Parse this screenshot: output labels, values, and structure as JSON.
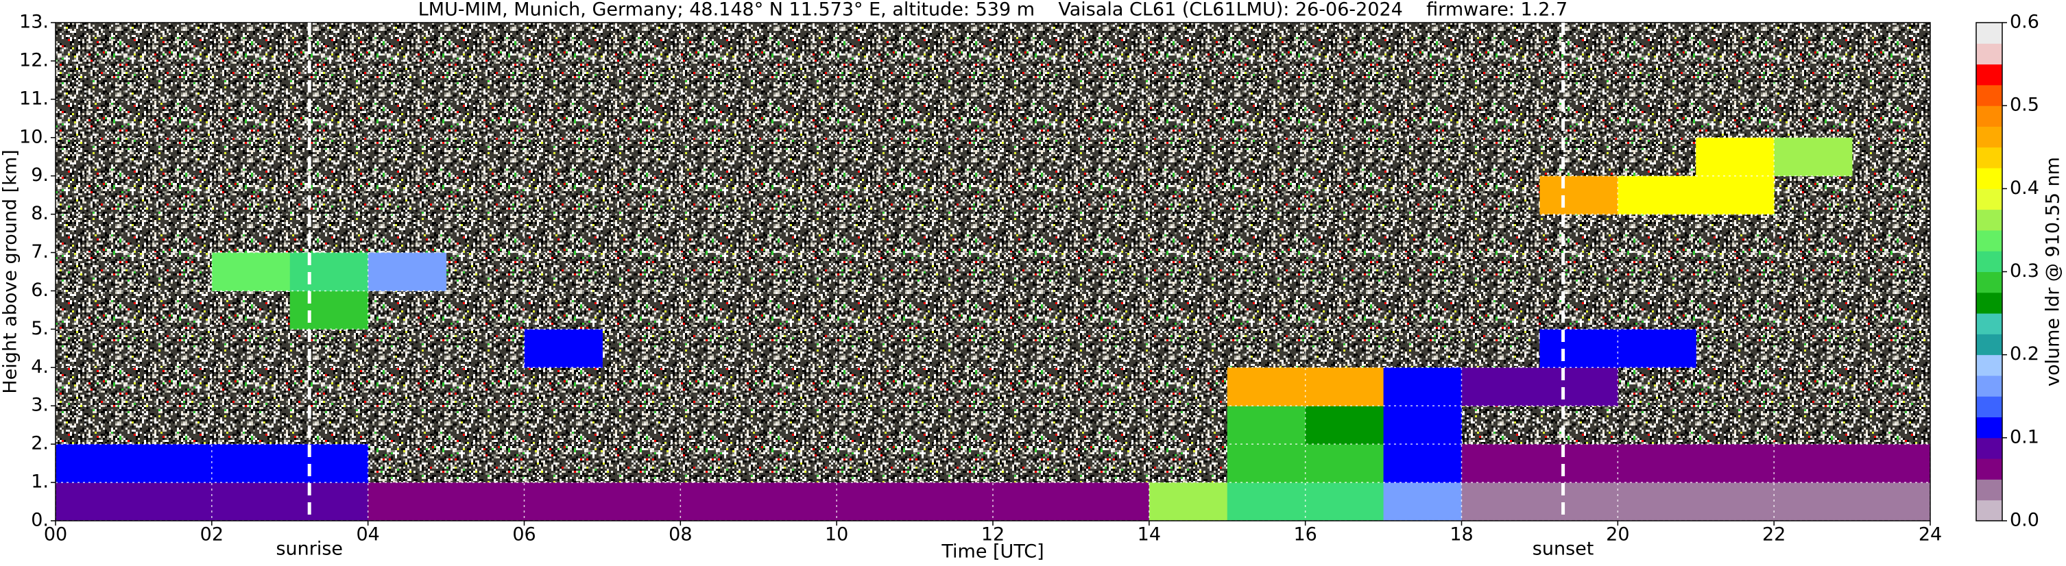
{
  "chart_data": {
    "type": "heatmap",
    "title": "LMU-MIM, Munich, Germany; 48.148° N 11.573° E, altitude: 539 m    Vaisala CL61 (CL61LMU): 26-06-2024    firmware: 1.2.7",
    "xlabel": "Time [UTC]",
    "ylabel": "Height above ground [km]",
    "colorbar_label": "volume ldr @ 910.55 nm",
    "xlim": [
      0,
      24
    ],
    "ylim": [
      0,
      13
    ],
    "xticks": [
      {
        "value": 0,
        "label": "00"
      },
      {
        "value": 2,
        "label": "02"
      },
      {
        "value": 4,
        "label": "04"
      },
      {
        "value": 6,
        "label": "06"
      },
      {
        "value": 8,
        "label": "08"
      },
      10,
      12,
      14,
      16,
      18,
      20,
      22,
      24
    ],
    "yticks": [
      {
        "value": 0,
        "label": "0."
      },
      {
        "value": 1,
        "label": "1."
      },
      {
        "value": 2,
        "label": "2."
      },
      {
        "value": 3,
        "label": "3."
      },
      {
        "value": 4,
        "label": "4."
      },
      {
        "value": 5,
        "label": "5."
      },
      {
        "value": 6,
        "label": "6."
      },
      {
        "value": 7,
        "label": "7."
      },
      {
        "value": 8,
        "label": "8."
      },
      {
        "value": 9,
        "label": "9."
      },
      {
        "value": 10,
        "label": "10."
      },
      {
        "value": 11,
        "label": "11."
      },
      {
        "value": 12,
        "label": "12."
      },
      {
        "value": 13,
        "label": "13."
      }
    ],
    "grid": true,
    "xbins": [
      0,
      1,
      2,
      3,
      4,
      5,
      6,
      7,
      8,
      9,
      10,
      11,
      12,
      13,
      14,
      15,
      16,
      17,
      18,
      19,
      20,
      21,
      22,
      23,
      24
    ],
    "ybins": [
      0,
      1,
      2,
      3,
      4,
      5,
      6,
      7,
      8,
      9,
      10,
      11,
      12,
      13
    ],
    "z": [
      [
        0.08,
        0.08,
        0.08,
        0.08,
        0.05,
        0.05,
        0.05,
        0.05,
        0.06,
        0.06,
        0.06,
        0.06,
        0.06,
        0.06,
        0.35,
        0.3,
        0.3,
        0.15,
        0.03,
        0.03,
        0.03,
        0.03,
        0.03,
        0.03
      ],
      [
        0.1,
        0.1,
        0.1,
        0.1,
        null,
        null,
        null,
        null,
        null,
        null,
        null,
        null,
        null,
        null,
        null,
        0.28,
        0.28,
        0.12,
        0.05,
        0.05,
        0.05,
        0.05,
        0.05,
        0.05
      ],
      [
        null,
        null,
        null,
        null,
        null,
        null,
        null,
        null,
        null,
        null,
        null,
        null,
        null,
        null,
        null,
        0.28,
        0.25,
        0.1,
        null,
        null,
        null,
        null,
        null,
        null
      ],
      [
        null,
        null,
        null,
        null,
        null,
        null,
        null,
        null,
        null,
        null,
        null,
        null,
        null,
        null,
        null,
        0.45,
        0.45,
        0.12,
        0.08,
        0.08,
        null,
        null,
        null,
        null
      ],
      [
        null,
        null,
        null,
        null,
        null,
        null,
        0.12,
        null,
        null,
        null,
        null,
        null,
        null,
        null,
        null,
        null,
        null,
        null,
        null,
        0.12,
        0.12,
        null,
        null,
        null
      ],
      [
        null,
        null,
        null,
        0.28,
        null,
        null,
        null,
        null,
        null,
        null,
        null,
        null,
        null,
        null,
        null,
        null,
        null,
        null,
        null,
        null,
        null,
        null,
        null,
        null
      ],
      [
        null,
        null,
        0.33,
        0.3,
        0.15,
        null,
        null,
        null,
        null,
        null,
        null,
        null,
        null,
        null,
        null,
        null,
        null,
        null,
        null,
        null,
        null,
        null,
        null,
        null
      ],
      [
        null,
        null,
        null,
        null,
        null,
        null,
        null,
        null,
        null,
        null,
        null,
        null,
        null,
        null,
        null,
        null,
        null,
        null,
        null,
        null,
        null,
        null,
        null,
        null
      ],
      [
        null,
        null,
        null,
        null,
        null,
        null,
        null,
        null,
        null,
        null,
        null,
        null,
        null,
        null,
        null,
        null,
        null,
        null,
        null,
        0.45,
        0.42,
        0.4,
        null,
        null
      ],
      [
        null,
        null,
        null,
        null,
        null,
        null,
        null,
        null,
        null,
        null,
        null,
        null,
        null,
        null,
        null,
        null,
        null,
        null,
        null,
        null,
        null,
        0.4,
        0.35,
        null
      ],
      [
        null,
        null,
        null,
        null,
        null,
        null,
        null,
        null,
        null,
        null,
        null,
        null,
        null,
        null,
        null,
        null,
        null,
        null,
        null,
        null,
        null,
        null,
        null,
        null
      ],
      [
        null,
        null,
        null,
        null,
        null,
        null,
        null,
        null,
        null,
        null,
        null,
        null,
        null,
        null,
        null,
        null,
        null,
        null,
        null,
        null,
        null,
        null,
        null,
        null
      ],
      [
        null,
        null,
        null,
        null,
        null,
        null,
        null,
        null,
        null,
        null,
        null,
        null,
        null,
        null,
        null,
        null,
        null,
        null,
        null,
        null,
        null,
        null,
        null,
        null
      ]
    ],
    "clim": [
      0,
      0.6
    ],
    "cticks": [
      {
        "value": 0,
        "label": "0.0"
      },
      0.1,
      0.2,
      0.3,
      0.4,
      0.5,
      0.6
    ],
    "colormap": [
      "#c8b8c8",
      "#a07aa0",
      "#800080",
      "#5a00a0",
      "#0000ff",
      "#3c64ff",
      "#78a0ff",
      "#a0c8ff",
      "#20a0a0",
      "#40c8b4",
      "#009600",
      "#32c832",
      "#3cdc78",
      "#64f064",
      "#a0f050",
      "#e6ff32",
      "#ffff00",
      "#ffd200",
      "#ffaa00",
      "#ff8c00",
      "#ff5a00",
      "#ff0000",
      "#f0c8c8",
      "#ebebeb"
    ],
    "annotations": [
      {
        "text": "sunrise",
        "x": 3.25
      },
      {
        "text": "sunset",
        "x": 19.3
      }
    ]
  }
}
